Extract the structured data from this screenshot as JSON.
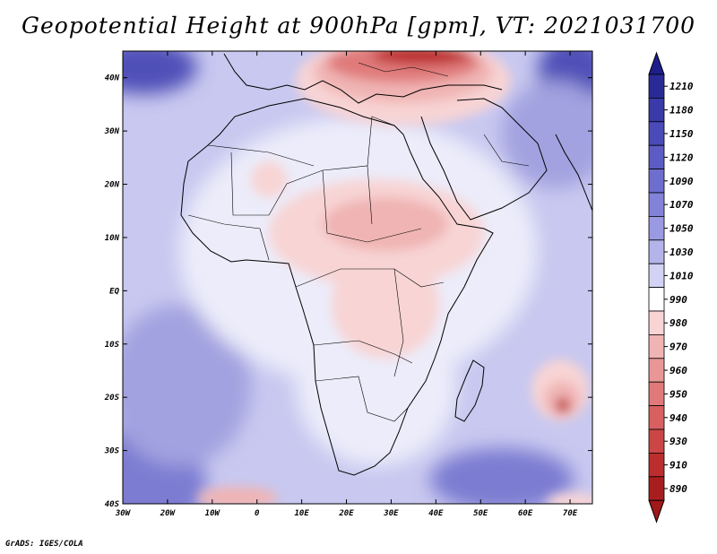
{
  "title": "Geopotential Height at 900hPa [gpm], VT: 2021031700",
  "credit": "GrADS: IGES/COLA",
  "map": {
    "lon_range": [
      -30,
      75
    ],
    "lat_range": [
      -40,
      45
    ],
    "lat_labels": [
      "40N",
      "30N",
      "20N",
      "10N",
      "EQ",
      "10S",
      "20S",
      "30S",
      "40S"
    ],
    "lat_values": [
      40,
      30,
      20,
      10,
      0,
      -10,
      -20,
      -30,
      -40
    ],
    "lon_labels": [
      "30W",
      "20W",
      "10W",
      "0",
      "10E",
      "20E",
      "30E",
      "40E",
      "50E",
      "60E",
      "70E"
    ],
    "lon_values": [
      -30,
      -20,
      -10,
      0,
      10,
      20,
      30,
      40,
      50,
      60,
      70
    ]
  },
  "colorbar": {
    "levels": [
      "1210",
      "1180",
      "1150",
      "1120",
      "1090",
      "1070",
      "1050",
      "1030",
      "1010",
      "990",
      "980",
      "970",
      "960",
      "950",
      "940",
      "930",
      "910",
      "890"
    ],
    "colors": [
      "#2a2a96",
      "#3a3aa8",
      "#4a4ab8",
      "#5c5cc4",
      "#6e6ece",
      "#8282d8",
      "#9a9ae2",
      "#b4b4ea",
      "#d2d2f4",
      "#ffffff",
      "#f8d4d4",
      "#f0b4b4",
      "#e89696",
      "#e07a7a",
      "#d86060",
      "#cc4646",
      "#bc2e2e",
      "#a81e1e"
    ],
    "top_arrow_color": "#1e1e8c",
    "bottom_arrow_color": "#a01818"
  },
  "field": {
    "background": "#c8c8f0",
    "africa_fill": "#ececfa",
    "warm_light": "#f8d4d4",
    "warm_mid": "#f0b4b4",
    "warm_strong": "#e07a7a",
    "warm_deep": "#bc2e2e",
    "cool_mid": "#a2a2e0",
    "cool_strong": "#7c7cd2",
    "cool_deep": "#5050b8"
  }
}
